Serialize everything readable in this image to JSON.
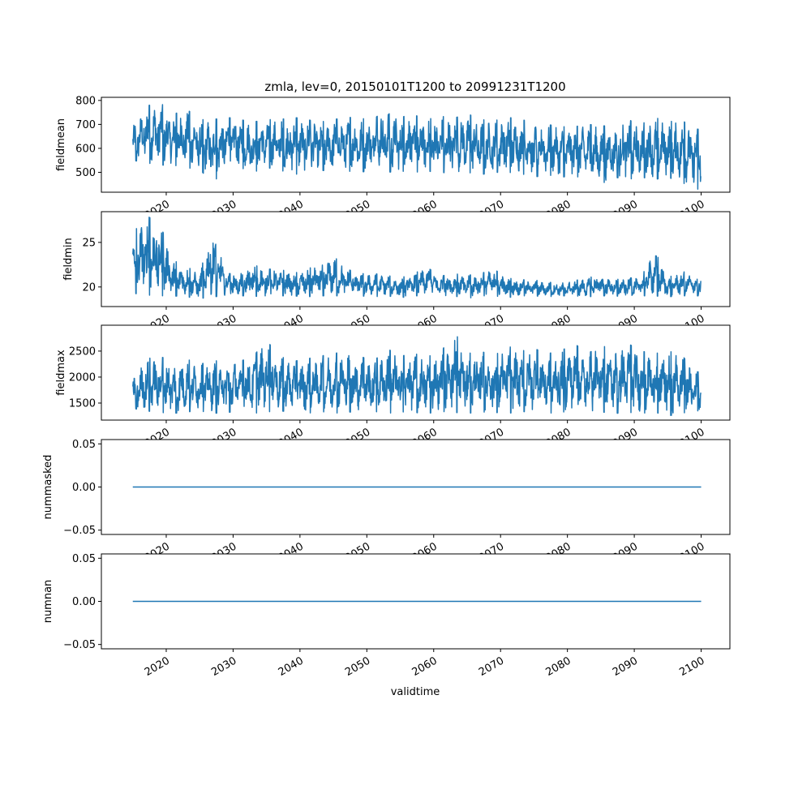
{
  "chart_data": [
    {
      "type": "line",
      "title": "zmla, lev=0, 20150101T1200 to 20991231T1200",
      "ylabel": "fieldmean",
      "xlabel": "",
      "ylim": [
        417,
        813
      ],
      "yticks": [
        "500",
        "600",
        "700",
        "800"
      ],
      "ytick_values": [
        500,
        600,
        700,
        800
      ],
      "note": "dense daily series; envelope given as approximate 2-year max/min",
      "envelope_x": [
        2015,
        2017,
        2019,
        2021,
        2023,
        2025,
        2027,
        2029,
        2031,
        2033,
        2035,
        2037,
        2039,
        2041,
        2043,
        2045,
        2047,
        2049,
        2051,
        2053,
        2055,
        2057,
        2059,
        2061,
        2063,
        2065,
        2067,
        2069,
        2071,
        2073,
        2075,
        2077,
        2079,
        2081,
        2083,
        2085,
        2087,
        2089,
        2091,
        2093,
        2095,
        2097,
        2099
      ],
      "high": [
        700,
        775,
        795,
        740,
        765,
        720,
        720,
        730,
        720,
        710,
        720,
        720,
        730,
        720,
        710,
        720,
        730,
        725,
        720,
        770,
        730,
        740,
        720,
        735,
        725,
        745,
        720,
        715,
        730,
        720,
        710,
        700,
        690,
        690,
        700,
        695,
        690,
        720,
        700,
        730,
        710,
        720,
        680
      ],
      "low": [
        550,
        540,
        530,
        530,
        520,
        510,
        460,
        510,
        520,
        500,
        520,
        510,
        490,
        500,
        510,
        500,
        505,
        500,
        510,
        500,
        505,
        500,
        505,
        500,
        495,
        500,
        490,
        500,
        500,
        495,
        480,
        490,
        480,
        485,
        470,
        450,
        480,
        470,
        480,
        470,
        480,
        460,
        430
      ]
    },
    {
      "type": "line",
      "ylabel": "fieldmin",
      "ylim": [
        17.8,
        28.45
      ],
      "yticks": [
        "20",
        "25"
      ],
      "ytick_values": [
        20,
        25
      ],
      "envelope_x": [
        2015,
        2017,
        2019,
        2021,
        2023,
        2025,
        2027,
        2029,
        2031,
        2033,
        2035,
        2037,
        2039,
        2041,
        2043,
        2045,
        2047,
        2049,
        2051,
        2053,
        2055,
        2057,
        2059,
        2061,
        2063,
        2065,
        2067,
        2069,
        2071,
        2073,
        2075,
        2077,
        2079,
        2081,
        2083,
        2085,
        2087,
        2089,
        2091,
        2093,
        2095,
        2097,
        2099
      ],
      "high": [
        26,
        28,
        27.2,
        23,
        22.3,
        21.5,
        26.8,
        21.5,
        21.5,
        22.5,
        22,
        22,
        21.5,
        22,
        22.5,
        23.5,
        22,
        21.5,
        21.5,
        21.3,
        21,
        21.5,
        22.2,
        21.2,
        21.5,
        21.3,
        21.5,
        22,
        21,
        20.8,
        20.8,
        20.5,
        20.5,
        20.7,
        21,
        21.4,
        20.8,
        21,
        21,
        24.2,
        21,
        21.8,
        21.3
      ],
      "low": [
        19.3,
        19.1,
        19,
        19,
        18.9,
        18.7,
        18.9,
        19,
        19,
        19,
        18.8,
        19,
        19,
        18.9,
        19,
        19,
        19,
        19,
        18.9,
        19,
        18.8,
        19,
        19,
        18.9,
        19,
        18.7,
        19,
        19,
        18.8,
        19,
        19,
        18.9,
        19,
        19,
        18.9,
        19,
        19,
        18.9,
        19,
        19,
        18.9,
        19,
        19
      ]
    },
    {
      "type": "line",
      "ylabel": "fieldmax",
      "ylim": [
        1172,
        2998
      ],
      "yticks": [
        "1500",
        "2000",
        "2500"
      ],
      "ytick_values": [
        1500,
        2000,
        2500
      ],
      "envelope_x": [
        2015,
        2017,
        2019,
        2021,
        2023,
        2025,
        2027,
        2029,
        2031,
        2033,
        2035,
        2037,
        2039,
        2041,
        2043,
        2045,
        2047,
        2049,
        2051,
        2053,
        2055,
        2057,
        2059,
        2061,
        2063,
        2065,
        2067,
        2069,
        2071,
        2073,
        2075,
        2077,
        2079,
        2081,
        2083,
        2085,
        2087,
        2089,
        2091,
        2093,
        2095,
        2097,
        2099
      ],
      "high": [
        2000,
        2350,
        2400,
        2300,
        2350,
        2250,
        2300,
        2350,
        2300,
        2400,
        2700,
        2400,
        2300,
        2350,
        2400,
        2450,
        2500,
        2400,
        2300,
        2550,
        2400,
        2450,
        2400,
        2450,
        2900,
        2450,
        2500,
        2400,
        2600,
        2500,
        2550,
        2450,
        2500,
        2650,
        2450,
        2600,
        2550,
        2650,
        2500,
        2450,
        2500,
        2450,
        2100
      ],
      "low": [
        1400,
        1350,
        1320,
        1300,
        1330,
        1350,
        1300,
        1320,
        1340,
        1300,
        1330,
        1350,
        1320,
        1300,
        1340,
        1300,
        1330,
        1320,
        1340,
        1300,
        1330,
        1320,
        1300,
        1340,
        1320,
        1300,
        1330,
        1320,
        1300,
        1340,
        1320,
        1300,
        1330,
        1320,
        1300,
        1330,
        1300,
        1320,
        1300,
        1330,
        1250,
        1300,
        1350
      ]
    },
    {
      "type": "line",
      "ylabel": "nummasked",
      "ylim": [
        -0.055,
        0.055
      ],
      "yticks": [
        "−0.05",
        "0.00",
        "0.05"
      ],
      "ytick_values": [
        -0.05,
        0,
        0.05
      ],
      "x": [
        2015,
        2100
      ],
      "y": [
        0,
        0
      ]
    },
    {
      "type": "line",
      "ylabel": "numnan",
      "xlabel": "validtime",
      "ylim": [
        -0.055,
        0.055
      ],
      "yticks": [
        "−0.05",
        "0.00",
        "0.05"
      ],
      "ytick_values": [
        -0.05,
        0,
        0.05
      ],
      "x": [
        2015,
        2100
      ],
      "y": [
        0,
        0
      ]
    }
  ],
  "xaxis": {
    "xlim": [
      2010.3,
      2104.3
    ],
    "ticks": [
      "2020",
      "2030",
      "2040",
      "2050",
      "2060",
      "2070",
      "2080",
      "2090",
      "2100"
    ],
    "tick_values": [
      2020,
      2030,
      2040,
      2050,
      2060,
      2070,
      2080,
      2090,
      2100
    ],
    "data_range": [
      2015,
      2100
    ]
  },
  "colors": {
    "series": "#1f77b4",
    "axes": "#000000"
  }
}
